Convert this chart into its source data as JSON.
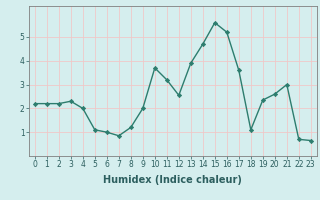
{
  "x": [
    0,
    1,
    2,
    3,
    4,
    5,
    6,
    7,
    8,
    9,
    10,
    11,
    12,
    13,
    14,
    15,
    16,
    17,
    18,
    19,
    20,
    21,
    22,
    23
  ],
  "y": [
    2.2,
    2.2,
    2.2,
    2.3,
    2.0,
    1.1,
    1.0,
    0.85,
    1.2,
    2.0,
    3.7,
    3.2,
    2.55,
    3.9,
    4.7,
    5.6,
    5.2,
    3.6,
    1.1,
    2.35,
    2.6,
    3.0,
    0.7,
    0.65
  ],
  "line_color": "#2d7d6e",
  "marker": "D",
  "marker_size": 2.2,
  "xlabel": "Humidex (Indice chaleur)",
  "xlim": [
    -0.5,
    23.5
  ],
  "ylim": [
    0,
    6.3
  ],
  "yticks": [
    1,
    2,
    3,
    4,
    5
  ],
  "xticks": [
    0,
    1,
    2,
    3,
    4,
    5,
    6,
    7,
    8,
    9,
    10,
    11,
    12,
    13,
    14,
    15,
    16,
    17,
    18,
    19,
    20,
    21,
    22,
    23
  ],
  "bg_color": "#d5eeee",
  "grid_color": "#f0c8c8",
  "spine_color": "#808080",
  "xlabel_fontsize": 7,
  "tick_fontsize": 5.5,
  "xlabel_color": "#2d5f5f",
  "tick_color": "#2d5f5f"
}
